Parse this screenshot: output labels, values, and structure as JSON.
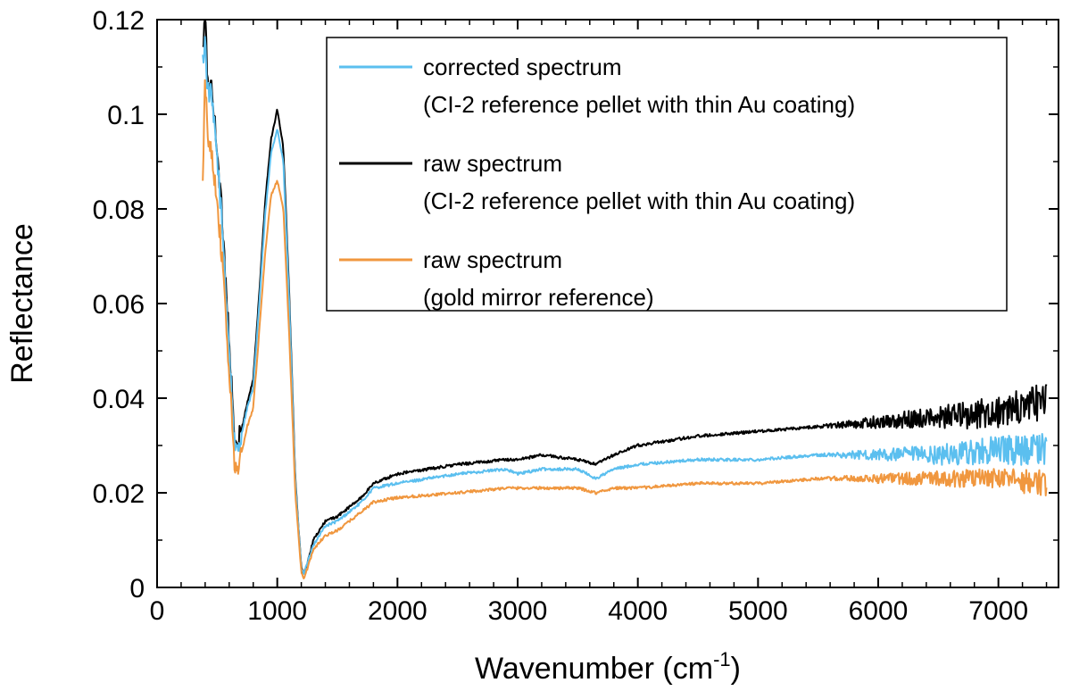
{
  "chart_data": {
    "type": "line",
    "title": "",
    "xlabel": "Wavenumber (cm",
    "xlabel_exponent": "-1",
    "xlabel_close": ")",
    "ylabel": "Reflectance",
    "xlim": [
      0,
      7500
    ],
    "ylim": [
      0,
      0.12
    ],
    "xticks": [
      0,
      1000,
      2000,
      3000,
      4000,
      5000,
      6000,
      7000
    ],
    "xtick_labels": [
      "0",
      "1000",
      "2000",
      "3000",
      "4000",
      "5000",
      "6000",
      "7000"
    ],
    "yticks": [
      0,
      0.02,
      0.04,
      0.06,
      0.08,
      0.1,
      0.12
    ],
    "ytick_labels": [
      "0",
      "0.02",
      "0.04",
      "0.06",
      "0.08",
      "0.1",
      "0.12"
    ],
    "legend_position": "top-right",
    "grid": false,
    "series": [
      {
        "name": "corrected spectrum",
        "legend_line1": "corrected spectrum",
        "legend_line2": "(CI-2 reference pellet with thin Au coating)",
        "color": "#5BBFEF",
        "noise_base": 0.0003,
        "noise_growth": 0.0035,
        "noise_start": 5500,
        "x": [
          380,
          400,
          420,
          450,
          500,
          550,
          600,
          650,
          700,
          750,
          800,
          850,
          900,
          950,
          1000,
          1050,
          1100,
          1150,
          1200,
          1220,
          1250,
          1300,
          1400,
          1500,
          1600,
          1700,
          1800,
          2000,
          2500,
          2900,
          3000,
          3200,
          3500,
          3650,
          3800,
          4000,
          4500,
          5000,
          5500,
          6000,
          6500,
          7000,
          7400
        ],
        "y": [
          0.111,
          0.116,
          0.105,
          0.104,
          0.091,
          0.073,
          0.05,
          0.028,
          0.032,
          0.038,
          0.042,
          0.06,
          0.079,
          0.092,
          0.097,
          0.09,
          0.06,
          0.022,
          0.004,
          0.003,
          0.005,
          0.009,
          0.013,
          0.014,
          0.016,
          0.018,
          0.021,
          0.022,
          0.024,
          0.025,
          0.024,
          0.025,
          0.025,
          0.023,
          0.025,
          0.026,
          0.027,
          0.027,
          0.028,
          0.028,
          0.028,
          0.029,
          0.029
        ]
      },
      {
        "name": "raw spectrum",
        "legend_line1": "raw spectrum",
        "legend_line2": "(CI-2 reference pellet with thin Au coating)",
        "color": "#000000",
        "noise_base": 0.0003,
        "noise_growth": 0.004,
        "noise_start": 5500,
        "x": [
          380,
          400,
          420,
          450,
          500,
          550,
          600,
          650,
          700,
          750,
          800,
          850,
          900,
          950,
          1000,
          1050,
          1100,
          1150,
          1200,
          1220,
          1250,
          1300,
          1400,
          1500,
          1600,
          1700,
          1800,
          2000,
          2500,
          2900,
          3000,
          3200,
          3500,
          3650,
          3800,
          4000,
          4500,
          5000,
          5500,
          6000,
          6500,
          7000,
          7400
        ],
        "y": [
          0.113,
          0.121,
          0.107,
          0.106,
          0.093,
          0.075,
          0.052,
          0.029,
          0.033,
          0.039,
          0.044,
          0.062,
          0.082,
          0.095,
          0.101,
          0.093,
          0.062,
          0.023,
          0.004,
          0.003,
          0.005,
          0.01,
          0.014,
          0.015,
          0.017,
          0.019,
          0.022,
          0.024,
          0.026,
          0.027,
          0.027,
          0.028,
          0.027,
          0.026,
          0.028,
          0.03,
          0.032,
          0.033,
          0.034,
          0.035,
          0.036,
          0.037,
          0.039
        ]
      },
      {
        "name": "raw spectrum",
        "legend_line1": "raw spectrum",
        "legend_line2": "(gold mirror reference)",
        "color": "#F0973F",
        "noise_base": 0.0003,
        "noise_growth": 0.0025,
        "noise_start": 5500,
        "x": [
          380,
          400,
          420,
          450,
          500,
          550,
          600,
          650,
          700,
          750,
          800,
          850,
          900,
          950,
          1000,
          1050,
          1100,
          1150,
          1200,
          1220,
          1250,
          1300,
          1400,
          1500,
          1600,
          1700,
          1800,
          2000,
          2500,
          2900,
          3000,
          3200,
          3500,
          3650,
          3800,
          4000,
          4500,
          5000,
          5500,
          6000,
          6500,
          7000,
          7400
        ],
        "y": [
          0.085,
          0.108,
          0.095,
          0.093,
          0.082,
          0.066,
          0.045,
          0.024,
          0.028,
          0.034,
          0.038,
          0.054,
          0.071,
          0.083,
          0.086,
          0.08,
          0.053,
          0.02,
          0.003,
          0.002,
          0.004,
          0.008,
          0.011,
          0.012,
          0.014,
          0.016,
          0.018,
          0.019,
          0.02,
          0.021,
          0.021,
          0.021,
          0.021,
          0.02,
          0.021,
          0.021,
          0.022,
          0.022,
          0.023,
          0.023,
          0.023,
          0.023,
          0.022
        ]
      }
    ]
  }
}
